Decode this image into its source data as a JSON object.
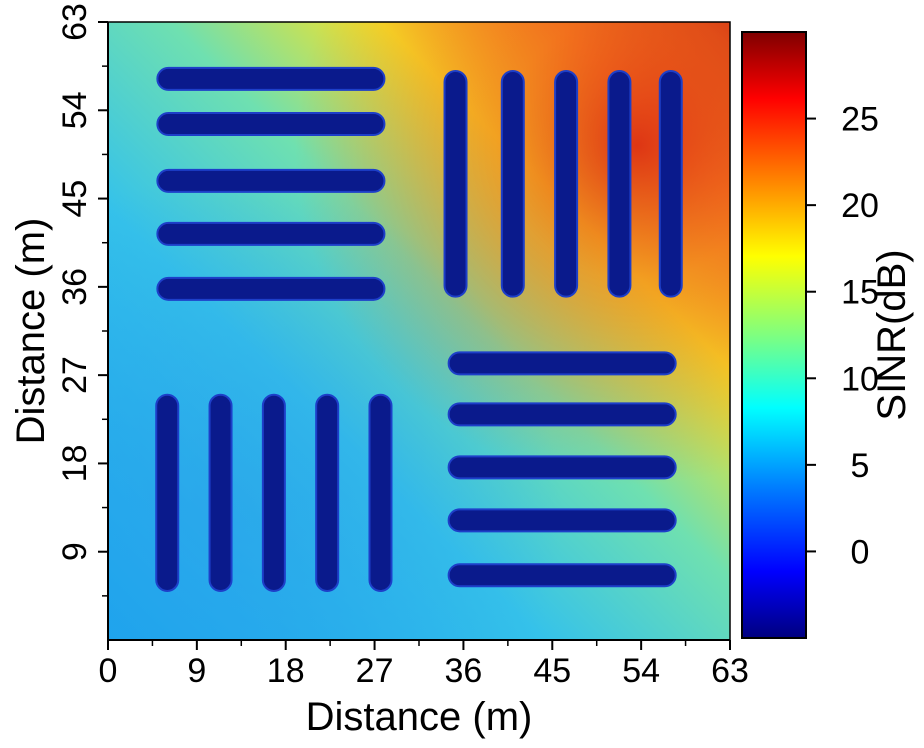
{
  "chart_data": {
    "type": "heatmap",
    "title": "",
    "xlabel": "Distance (m)",
    "ylabel": "Distance (m)",
    "xlim": [
      0,
      63
    ],
    "ylim": [
      0,
      63
    ],
    "x_ticks": [
      0,
      9,
      18,
      27,
      36,
      45,
      54,
      63
    ],
    "y_ticks": [
      9,
      18,
      27,
      36,
      45,
      54,
      63
    ],
    "colorbar": {
      "label": "SINR(dB)",
      "range": [
        -5,
        30
      ],
      "ticks": [
        0,
        5,
        10,
        15,
        20,
        25
      ],
      "colormap": [
        "#00007f",
        "#0000ff",
        "#007fff",
        "#00ffff",
        "#7fff7f",
        "#ffff00",
        "#ff7f00",
        "#ff0000",
        "#7f0000"
      ]
    },
    "obstacles": [
      {
        "orientation": "horizontal",
        "x": [
          5,
          28
        ],
        "y": 57.2
      },
      {
        "orientation": "horizontal",
        "x": [
          5,
          28
        ],
        "y": 52.6
      },
      {
        "orientation": "horizontal",
        "x": [
          5,
          28
        ],
        "y": 46.8
      },
      {
        "orientation": "horizontal",
        "x": [
          5,
          28
        ],
        "y": 41.4
      },
      {
        "orientation": "horizontal",
        "x": [
          5,
          28
        ],
        "y": 35.8
      },
      {
        "orientation": "vertical",
        "x": 35.2,
        "y": [
          35,
          58
        ]
      },
      {
        "orientation": "vertical",
        "x": 41,
        "y": [
          35,
          58
        ]
      },
      {
        "orientation": "vertical",
        "x": 46.4,
        "y": [
          35,
          58
        ]
      },
      {
        "orientation": "vertical",
        "x": 51.8,
        "y": [
          35,
          58
        ]
      },
      {
        "orientation": "vertical",
        "x": 57,
        "y": [
          35,
          58
        ]
      },
      {
        "orientation": "vertical",
        "x": 6,
        "y": [
          5,
          25
        ]
      },
      {
        "orientation": "vertical",
        "x": 11.4,
        "y": [
          5,
          25
        ]
      },
      {
        "orientation": "vertical",
        "x": 16.8,
        "y": [
          5,
          25
        ]
      },
      {
        "orientation": "vertical",
        "x": 22.2,
        "y": [
          5,
          25
        ]
      },
      {
        "orientation": "vertical",
        "x": 27.6,
        "y": [
          5,
          25
        ]
      },
      {
        "orientation": "horizontal",
        "x": [
          34.5,
          57.5
        ],
        "y": 28.2
      },
      {
        "orientation": "horizontal",
        "x": [
          34.5,
          57.5
        ],
        "y": 23
      },
      {
        "orientation": "horizontal",
        "x": [
          34.5,
          57.5
        ],
        "y": 17.6
      },
      {
        "orientation": "horizontal",
        "x": [
          34.5,
          57.5
        ],
        "y": 12.2
      },
      {
        "orientation": "horizontal",
        "x": [
          34.5,
          57.5
        ],
        "y": 6.6
      }
    ]
  }
}
